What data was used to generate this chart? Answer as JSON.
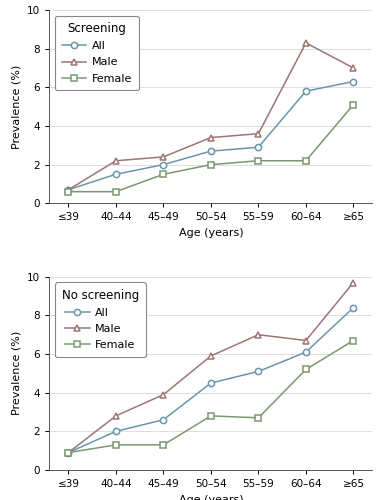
{
  "age_labels": [
    "≤39",
    "40–44",
    "45–49",
    "50–54",
    "55–59",
    "60–64",
    "≥65"
  ],
  "screening": {
    "title": "Screening",
    "all": [
      0.7,
      1.5,
      2.0,
      2.7,
      2.9,
      5.8,
      6.3
    ],
    "male": [
      0.7,
      2.2,
      2.4,
      3.4,
      3.6,
      8.3,
      7.0
    ],
    "female": [
      0.6,
      0.6,
      1.5,
      2.0,
      2.2,
      2.2,
      5.1
    ]
  },
  "no_screening": {
    "title": "No screening",
    "all": [
      0.9,
      2.0,
      2.6,
      4.5,
      5.1,
      6.1,
      8.4
    ],
    "male": [
      0.9,
      2.8,
      3.9,
      5.9,
      7.0,
      6.7,
      9.7
    ],
    "female": [
      0.9,
      1.3,
      1.3,
      2.8,
      2.7,
      5.2,
      6.7
    ]
  },
  "color_all": "#6a96aa",
  "color_male": "#9e7575",
  "color_female": "#7a9870",
  "ylabel": "Prevalence (%)",
  "xlabel": "Age (years)",
  "ylim": [
    0,
    10
  ],
  "yticks": [
    0,
    2,
    4,
    6,
    8,
    10
  ],
  "legend_fontsize": 8,
  "axis_fontsize": 8,
  "tick_fontsize": 7.5
}
